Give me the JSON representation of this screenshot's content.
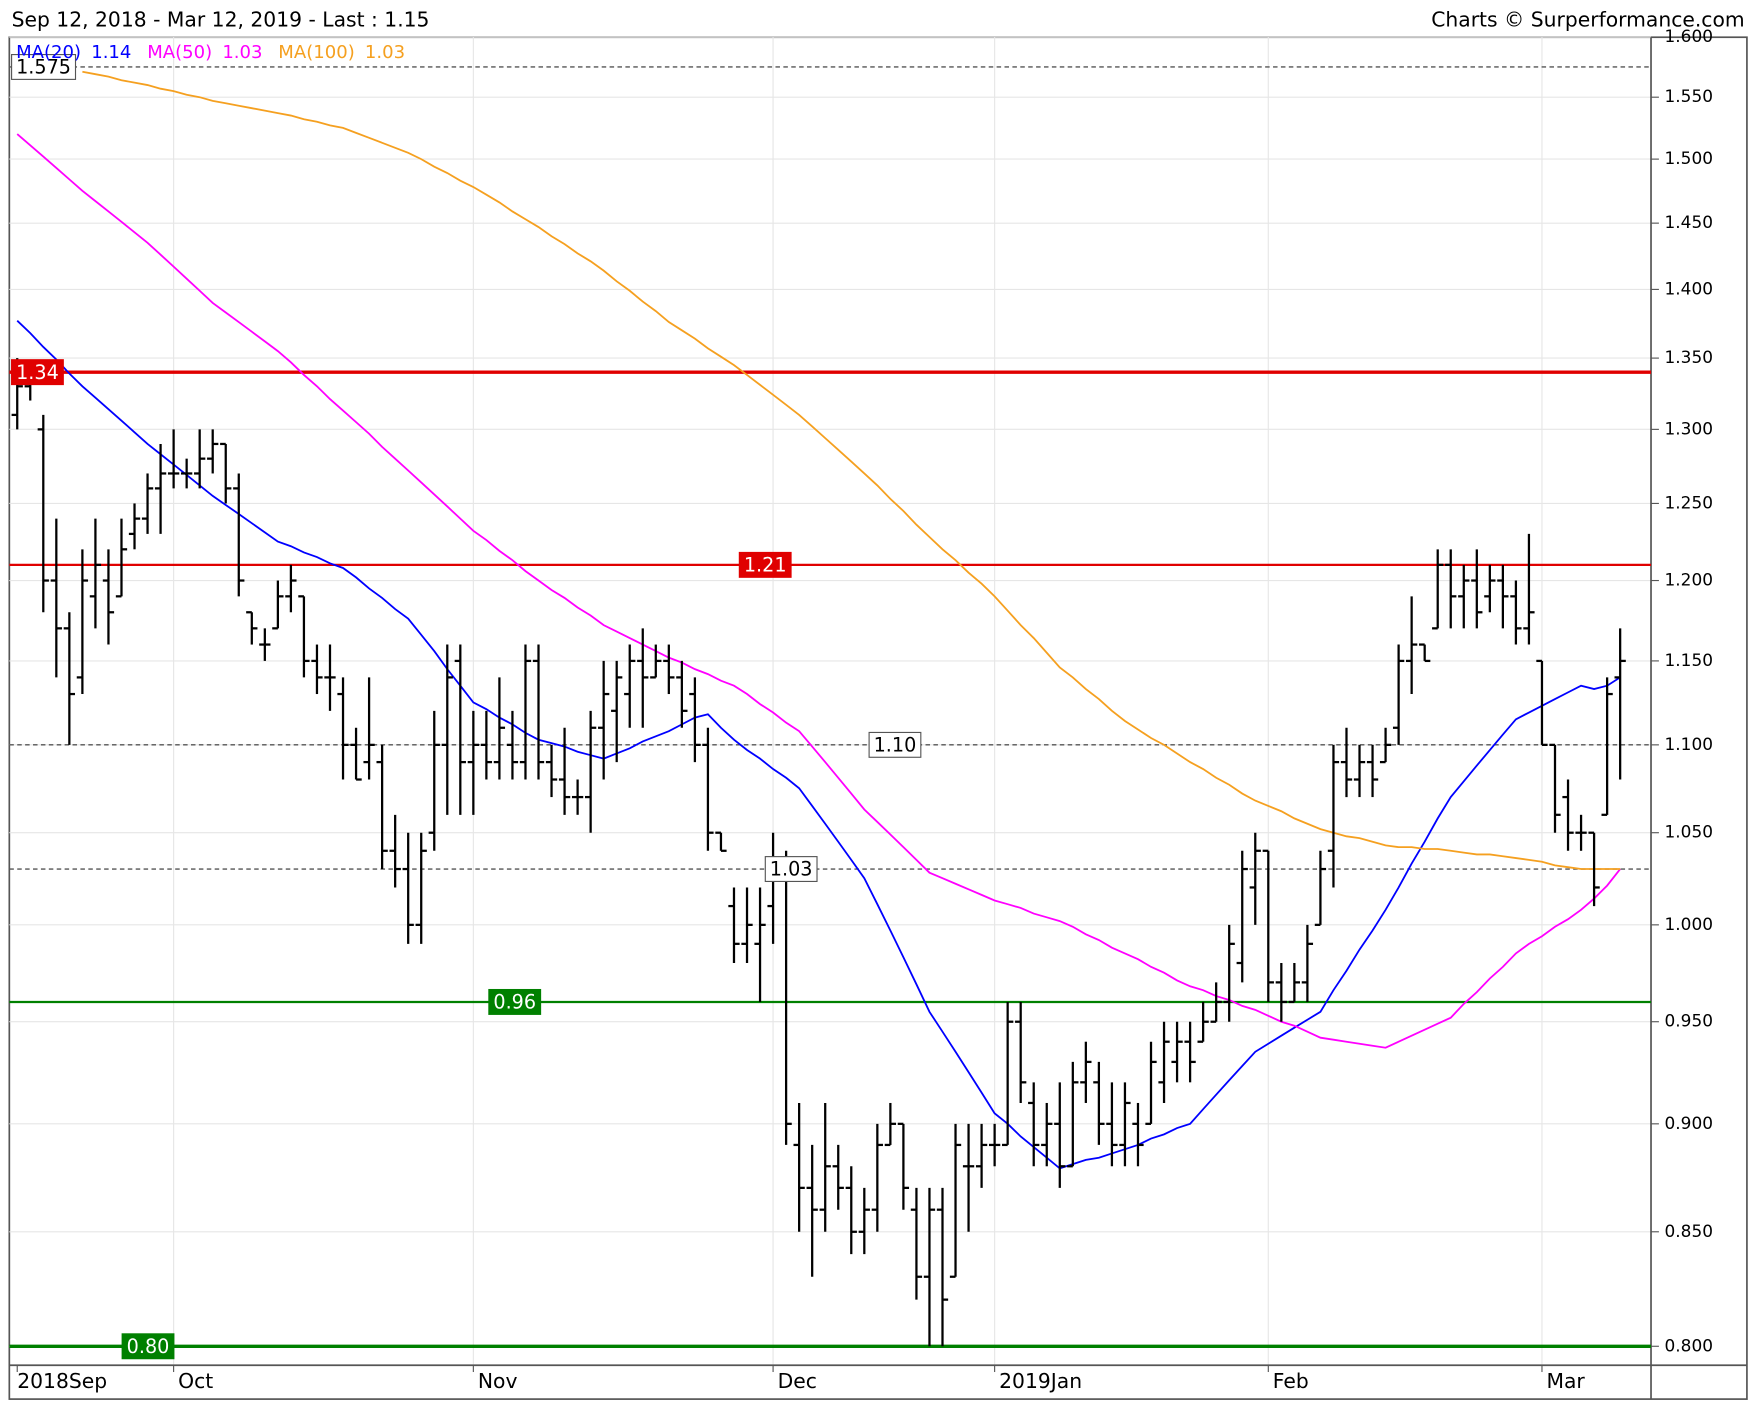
{
  "chart_data": {
    "type": "ohlc",
    "title": "Sep 12, 2018 - Mar 12, 2019 - Last : 1.15",
    "source": "Charts © Surperformance.com",
    "color": "#000000",
    "log_scale": true,
    "grid": true,
    "ylim": [
      0.792,
      1.6
    ],
    "yticks": [
      {
        "value": 0.8,
        "label": "0.800"
      },
      {
        "value": 0.85,
        "label": "0.850"
      },
      {
        "value": 0.9,
        "label": "0.900"
      },
      {
        "value": 0.95,
        "label": "0.950"
      },
      {
        "value": 1,
        "label": "1.000"
      },
      {
        "value": 1.05,
        "label": "1.050"
      },
      {
        "value": 1.1,
        "label": "1.100"
      },
      {
        "value": 1.15,
        "label": "1.150"
      },
      {
        "value": 1.2,
        "label": "1.200"
      },
      {
        "value": 1.25,
        "label": "1.250"
      },
      {
        "value": 1.3,
        "label": "1.300"
      },
      {
        "value": 1.35,
        "label": "1.350"
      },
      {
        "value": 1.4,
        "label": "1.400"
      },
      {
        "value": 1.45,
        "label": "1.450"
      },
      {
        "value": 1.5,
        "label": "1.500"
      },
      {
        "value": 1.55,
        "label": "1.550"
      },
      {
        "value": 1.6,
        "label": "1.600"
      }
    ],
    "categories": [
      "2018Sep",
      null,
      null,
      null,
      null,
      null,
      null,
      null,
      null,
      null,
      null,
      null,
      "Oct",
      null,
      null,
      null,
      null,
      null,
      null,
      null,
      null,
      null,
      null,
      null,
      null,
      null,
      null,
      null,
      null,
      null,
      null,
      null,
      null,
      null,
      null,
      "Nov",
      null,
      null,
      null,
      null,
      null,
      null,
      null,
      null,
      null,
      null,
      null,
      null,
      null,
      null,
      null,
      null,
      null,
      null,
      null,
      null,
      null,
      null,
      "Dec",
      null,
      null,
      null,
      null,
      null,
      null,
      null,
      null,
      null,
      null,
      null,
      null,
      null,
      null,
      null,
      null,
      "2019Jan",
      null,
      null,
      null,
      null,
      null,
      null,
      null,
      null,
      null,
      null,
      null,
      null,
      null,
      null,
      null,
      null,
      null,
      null,
      null,
      null,
      "Feb",
      null,
      null,
      null,
      null,
      null,
      null,
      null,
      null,
      null,
      null,
      null,
      null,
      null,
      null,
      null,
      null,
      null,
      null,
      null,
      null,
      "Mar",
      null,
      null,
      null,
      null,
      null,
      null
    ],
    "open": [
      1.31,
      1.33,
      1.3,
      1.2,
      1.17,
      1.14,
      1.19,
      1.2,
      1.19,
      1.23,
      1.24,
      1.26,
      1.27,
      1.27,
      1.27,
      1.28,
      1.29,
      1.26,
      1.18,
      1.16,
      1.17,
      1.19,
      1.19,
      1.15,
      1.14,
      1.13,
      1.1,
      1.09,
      1.09,
      1.04,
      1.03,
      1.0,
      1.05,
      1.1,
      1.15,
      1.09,
      1.1,
      1.09,
      1.1,
      1.09,
      1.15,
      1.09,
      1.08,
      1.07,
      1.07,
      1.11,
      1.12,
      1.13,
      1.15,
      1.14,
      1.15,
      1.14,
      1.13,
      1.1,
      1.05,
      1.01,
      0.99,
      0.99,
      1.01,
      1.03,
      0.89,
      0.87,
      0.86,
      0.88,
      0.87,
      0.85,
      0.86,
      0.89,
      0.9,
      0.86,
      0.83,
      0.86,
      0.83,
      0.88,
      0.88,
      0.89,
      0.89,
      0.95,
      0.91,
      0.89,
      0.9,
      0.88,
      0.92,
      0.92,
      0.9,
      0.89,
      0.9,
      0.9,
      0.92,
      0.93,
      0.94,
      0.94,
      0.95,
      0.96,
      0.98,
      1.02,
      1.04,
      0.97,
      0.96,
      0.97,
      1.0,
      1.04,
      1.09,
      1.08,
      1.09,
      1.09,
      1.11,
      1.15,
      1.16,
      1.17,
      1.21,
      1.19,
      1.2,
      1.19,
      1.2,
      1.19,
      1.17,
      1.15,
      1.1,
      1.07,
      1.05,
      1.05,
      1.06,
      1.14
    ],
    "high": [
      1.35,
      1.34,
      1.31,
      1.24,
      1.18,
      1.22,
      1.24,
      1.22,
      1.24,
      1.25,
      1.27,
      1.29,
      1.3,
      1.28,
      1.3,
      1.3,
      1.29,
      1.27,
      1.18,
      1.17,
      1.2,
      1.21,
      1.19,
      1.16,
      1.16,
      1.14,
      1.11,
      1.14,
      1.1,
      1.06,
      1.05,
      1.05,
      1.12,
      1.16,
      1.16,
      1.12,
      1.12,
      1.14,
      1.12,
      1.16,
      1.16,
      1.1,
      1.11,
      1.08,
      1.12,
      1.15,
      1.15,
      1.16,
      1.17,
      1.16,
      1.16,
      1.15,
      1.14,
      1.11,
      1.05,
      1.02,
      1.02,
      1.02,
      1.05,
      1.04,
      0.91,
      0.89,
      0.91,
      0.89,
      0.88,
      0.87,
      0.9,
      0.91,
      0.9,
      0.87,
      0.87,
      0.87,
      0.9,
      0.9,
      0.9,
      0.9,
      0.96,
      0.96,
      0.92,
      0.91,
      0.92,
      0.93,
      0.94,
      0.93,
      0.92,
      0.92,
      0.91,
      0.94,
      0.95,
      0.95,
      0.95,
      0.96,
      0.97,
      1.0,
      1.04,
      1.05,
      1.04,
      0.98,
      0.98,
      1.0,
      1.04,
      1.1,
      1.11,
      1.1,
      1.1,
      1.11,
      1.16,
      1.19,
      1.16,
      1.22,
      1.22,
      1.21,
      1.22,
      1.21,
      1.21,
      1.2,
      1.23,
      1.15,
      1.1,
      1.08,
      1.06,
      1.05,
      1.14,
      1.17
    ],
    "low": [
      1.3,
      1.32,
      1.18,
      1.14,
      1.1,
      1.13,
      1.17,
      1.16,
      1.19,
      1.22,
      1.23,
      1.23,
      1.26,
      1.26,
      1.26,
      1.27,
      1.25,
      1.19,
      1.16,
      1.15,
      1.17,
      1.18,
      1.14,
      1.13,
      1.12,
      1.08,
      1.08,
      1.08,
      1.03,
      1.02,
      0.99,
      0.99,
      1.04,
      1.06,
      1.06,
      1.06,
      1.08,
      1.08,
      1.08,
      1.08,
      1.08,
      1.07,
      1.06,
      1.06,
      1.05,
      1.08,
      1.09,
      1.11,
      1.11,
      1.14,
      1.13,
      1.11,
      1.09,
      1.04,
      1.04,
      0.98,
      0.98,
      0.96,
      0.99,
      0.89,
      0.85,
      0.83,
      0.85,
      0.86,
      0.84,
      0.84,
      0.85,
      0.89,
      0.86,
      0.82,
      0.8,
      0.8,
      0.83,
      0.85,
      0.87,
      0.88,
      0.89,
      0.91,
      0.88,
      0.88,
      0.87,
      0.88,
      0.91,
      0.89,
      0.88,
      0.88,
      0.88,
      0.9,
      0.91,
      0.92,
      0.92,
      0.94,
      0.95,
      0.95,
      0.97,
      1.0,
      0.96,
      0.95,
      0.96,
      0.96,
      1.0,
      1.02,
      1.07,
      1.07,
      1.07,
      1.09,
      1.1,
      1.13,
      1.15,
      1.17,
      1.17,
      1.17,
      1.17,
      1.18,
      1.17,
      1.16,
      1.16,
      1.1,
      1.05,
      1.04,
      1.04,
      1.01,
      1.06,
      1.08
    ],
    "close": [
      1.33,
      1.34,
      1.2,
      1.17,
      1.13,
      1.2,
      1.21,
      1.18,
      1.22,
      1.24,
      1.26,
      1.27,
      1.27,
      1.27,
      1.28,
      1.29,
      1.26,
      1.2,
      1.17,
      1.16,
      1.19,
      1.2,
      1.15,
      1.14,
      1.14,
      1.1,
      1.08,
      1.1,
      1.04,
      1.03,
      1.0,
      1.04,
      1.1,
      1.14,
      1.09,
      1.1,
      1.09,
      1.11,
      1.09,
      1.15,
      1.09,
      1.08,
      1.07,
      1.07,
      1.11,
      1.13,
      1.14,
      1.15,
      1.14,
      1.15,
      1.14,
      1.12,
      1.1,
      1.05,
      1.04,
      0.99,
      1.0,
      1.0,
      1.03,
      0.9,
      0.87,
      0.86,
      0.88,
      0.87,
      0.85,
      0.86,
      0.89,
      0.9,
      0.87,
      0.83,
      0.86,
      0.82,
      0.89,
      0.88,
      0.89,
      0.89,
      0.95,
      0.92,
      0.89,
      0.9,
      0.88,
      0.92,
      0.93,
      0.9,
      0.89,
      0.91,
      0.89,
      0.93,
      0.94,
      0.94,
      0.93,
      0.95,
      0.96,
      0.99,
      1.03,
      1.04,
      0.97,
      0.96,
      0.97,
      0.99,
      1.03,
      1.09,
      1.08,
      1.09,
      1.08,
      1.1,
      1.15,
      1.16,
      1.15,
      1.21,
      1.19,
      1.2,
      1.18,
      1.2,
      1.19,
      1.17,
      1.18,
      1.1,
      1.06,
      1.05,
      1.05,
      1.02,
      1.13,
      1.15
    ],
    "series": [
      {
        "name": "MA(20)",
        "color": "#0000ff",
        "current": 1.14,
        "values": [
          1.377,
          1.368,
          1.358,
          1.349,
          1.339,
          1.33,
          1.322,
          1.314,
          1.306,
          1.298,
          1.29,
          1.283,
          1.276,
          1.269,
          1.262,
          1.255,
          1.249,
          1.243,
          1.237,
          1.231,
          1.225,
          1.222,
          1.218,
          1.215,
          1.211,
          1.208,
          1.202,
          1.195,
          1.189,
          1.182,
          1.176,
          1.166,
          1.156,
          1.145,
          1.135,
          1.125,
          1.121,
          1.116,
          1.112,
          1.107,
          1.103,
          1.101,
          1.099,
          1.096,
          1.094,
          1.092,
          1.095,
          1.098,
          1.102,
          1.105,
          1.108,
          1.112,
          1.116,
          1.118,
          1.11,
          1.103,
          1.097,
          1.092,
          1.086,
          1.081,
          1.075,
          1.065,
          1.055,
          1.045,
          1.035,
          1.025,
          1.011,
          0.997,
          0.983,
          0.969,
          0.955,
          0.945,
          0.935,
          0.925,
          0.915,
          0.905,
          0.9,
          0.894,
          0.889,
          0.884,
          0.879,
          0.881,
          0.883,
          0.884,
          0.886,
          0.888,
          0.89,
          0.893,
          0.895,
          0.898,
          0.9,
          0.907,
          0.914,
          0.921,
          0.928,
          0.935,
          0.939,
          0.943,
          0.947,
          0.951,
          0.955,
          0.966,
          0.976,
          0.987,
          0.997,
          1.008,
          1.02,
          1.033,
          1.045,
          1.058,
          1.07,
          1.079,
          1.088,
          1.097,
          1.106,
          1.115,
          1.119,
          1.123,
          1.127,
          1.131,
          1.135,
          1.133,
          1.135,
          1.14
        ]
      },
      {
        "name": "MA(50)",
        "color": "#ff00ff",
        "current": 1.03,
        "values": [
          1.52,
          1.511,
          1.502,
          1.493,
          1.484,
          1.475,
          1.467,
          1.459,
          1.451,
          1.443,
          1.435,
          1.426,
          1.417,
          1.408,
          1.399,
          1.39,
          1.383,
          1.376,
          1.369,
          1.362,
          1.355,
          1.347,
          1.338,
          1.33,
          1.321,
          1.313,
          1.305,
          1.297,
          1.288,
          1.28,
          1.272,
          1.264,
          1.256,
          1.248,
          1.24,
          1.232,
          1.226,
          1.219,
          1.213,
          1.206,
          1.2,
          1.194,
          1.189,
          1.183,
          1.178,
          1.172,
          1.168,
          1.164,
          1.16,
          1.156,
          1.152,
          1.149,
          1.145,
          1.142,
          1.138,
          1.135,
          1.13,
          1.124,
          1.119,
          1.113,
          1.108,
          1.099,
          1.09,
          1.081,
          1.072,
          1.063,
          1.056,
          1.049,
          1.042,
          1.035,
          1.028,
          1.025,
          1.022,
          1.019,
          1.016,
          1.013,
          1.011,
          1.009,
          1.006,
          1.004,
          1.002,
          0.999,
          0.995,
          0.992,
          0.988,
          0.985,
          0.982,
          0.978,
          0.975,
          0.971,
          0.968,
          0.966,
          0.963,
          0.961,
          0.958,
          0.956,
          0.953,
          0.95,
          0.948,
          0.945,
          0.942,
          0.941,
          0.94,
          0.939,
          0.938,
          0.937,
          0.94,
          0.943,
          0.946,
          0.949,
          0.952,
          0.959,
          0.965,
          0.972,
          0.978,
          0.985,
          0.99,
          0.994,
          0.999,
          1.003,
          1.008,
          1.014,
          1.021,
          1.03
        ]
      },
      {
        "name": "MA(100)",
        "color": "#f5a020",
        "current": 1.03,
        "values": [
          null,
          null,
          null,
          null,
          null,
          1.571,
          1.569,
          1.567,
          1.564,
          1.562,
          1.56,
          1.557,
          1.555,
          1.552,
          1.55,
          1.547,
          1.545,
          1.543,
          1.541,
          1.539,
          1.537,
          1.535,
          1.532,
          1.53,
          1.527,
          1.525,
          1.521,
          1.517,
          1.513,
          1.509,
          1.505,
          1.5,
          1.494,
          1.489,
          1.483,
          1.478,
          1.472,
          1.466,
          1.459,
          1.453,
          1.447,
          1.44,
          1.434,
          1.427,
          1.421,
          1.414,
          1.406,
          1.399,
          1.391,
          1.384,
          1.376,
          1.37,
          1.364,
          1.357,
          1.351,
          1.345,
          1.338,
          1.331,
          1.324,
          1.317,
          1.31,
          1.302,
          1.294,
          1.286,
          1.278,
          1.27,
          1.262,
          1.253,
          1.245,
          1.236,
          1.228,
          1.22,
          1.213,
          1.205,
          1.198,
          1.19,
          1.181,
          1.172,
          1.164,
          1.155,
          1.146,
          1.14,
          1.133,
          1.127,
          1.12,
          1.114,
          1.109,
          1.104,
          1.1,
          1.095,
          1.09,
          1.086,
          1.081,
          1.077,
          1.072,
          1.068,
          1.065,
          1.062,
          1.058,
          1.055,
          1.052,
          1.05,
          1.048,
          1.047,
          1.045,
          1.043,
          1.042,
          1.042,
          1.041,
          1.041,
          1.04,
          1.039,
          1.038,
          1.038,
          1.037,
          1.036,
          1.035,
          1.034,
          1.032,
          1.031,
          1.03,
          1.03,
          1.03,
          1.03
        ]
      }
    ],
    "hlines": [
      {
        "value": 1.575,
        "label": "1.575",
        "color": "#555555",
        "style": "dashed"
      },
      {
        "value": 1.34,
        "label": "1.34",
        "color": "#e00000",
        "style": "thick"
      },
      {
        "value": 1.21,
        "label": "1.21",
        "color": "#e00000",
        "style": "solid"
      },
      {
        "value": 1.1,
        "label": "1.10",
        "color": "#555555",
        "style": "dashed"
      },
      {
        "value": 1.03,
        "label": "1.03",
        "color": "#555555",
        "style": "dashed"
      },
      {
        "value": 0.96,
        "label": "0.96",
        "color": "#008000",
        "style": "solid"
      },
      {
        "value": 0.8,
        "label": "0.80",
        "color": "#008000",
        "style": "thick"
      }
    ]
  }
}
